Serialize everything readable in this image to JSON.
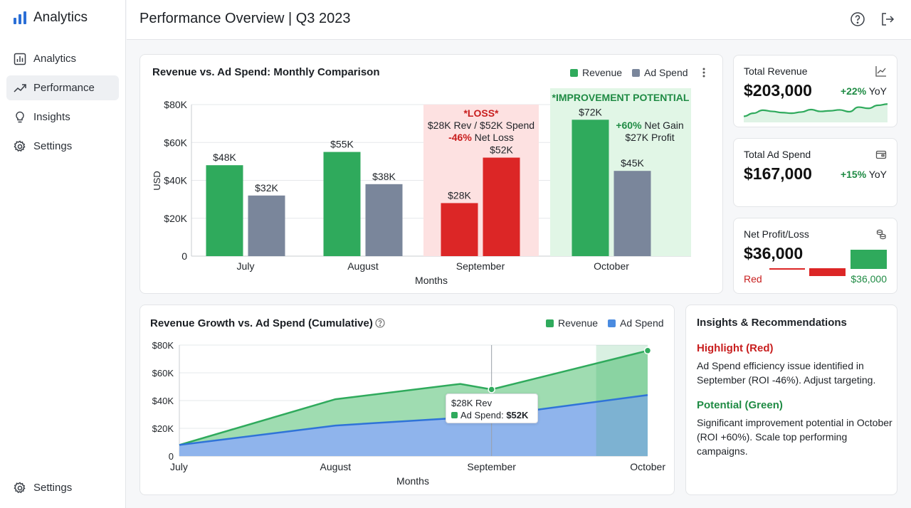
{
  "sidebar": {
    "brand": "Analytics",
    "items": [
      {
        "label": "Analytics"
      },
      {
        "label": "Performance"
      },
      {
        "label": "Insights"
      },
      {
        "label": "Settings"
      }
    ],
    "footer_label": "Settings"
  },
  "header": {
    "title": "Performance Overview | Q3 2023"
  },
  "colors": {
    "revenue": "#2faa5c",
    "ad_spend": "#7a869b",
    "loss": "#dc2626",
    "ad_spend_area": "#4a8be0"
  },
  "bar_card": {
    "title": "Revenue vs. Ad Spend: Monthly Comparison",
    "legend": [
      "Revenue",
      "Ad Spend"
    ],
    "menu_icon": "more-vertical-icon",
    "annotations": {
      "loss_title": "*LOSS*",
      "loss_line1": "$28K Rev / $52K Spend",
      "loss_line2_value": "-46%",
      "loss_line2_text": " Net Loss",
      "gain_title": "*IMPROVEMENT POTENTIAL",
      "gain_line1_value": "+60%",
      "gain_line1_text": " Net Gain",
      "gain_line2": "$27K Profit"
    }
  },
  "kpis": [
    {
      "label": "Total Revenue",
      "value": "$203,000",
      "change": "+22%",
      "change_suffix": " YoY",
      "icon": "line-chart-icon"
    },
    {
      "label": "Total Ad Spend",
      "value": "$167,000",
      "change": "+15%",
      "change_suffix": " YoY",
      "icon": "wallet-icon"
    },
    {
      "label": "Net Profit/Loss",
      "value": "$36,000",
      "neg_label": "Red",
      "pos_label": "$36,000",
      "icon": "coins-icon"
    }
  ],
  "kpi_sparkline": [
    2,
    3,
    4,
    3.6,
    3.2,
    3,
    3.4,
    4.2,
    3.6,
    3.8,
    4.1,
    3.5,
    5,
    4.6,
    5.6,
    6
  ],
  "area_card": {
    "title": "Revenue Growth vs. Ad Spend (Cumulative)",
    "legend": [
      "Revenue",
      "Ad Spend"
    ],
    "help_icon": "help-circle-icon",
    "tooltip": {
      "line1": "$28K Rev",
      "line2_label": "Ad Spend: ",
      "line2_value": "$52K"
    }
  },
  "insights": {
    "title": "Insights & Recommendations",
    "items": [
      {
        "head": "Highlight (Red)",
        "text": "Ad Spend efficiency issue identified in September (ROI -46%). Adjust targeting."
      },
      {
        "head": "Potential (Green)",
        "text": "Significant improvement potential in October (ROI +60%). Scale top performing campaigns."
      }
    ]
  },
  "chart_data": [
    {
      "type": "bar",
      "title": "Revenue vs. Ad Spend: Monthly Comparison",
      "xlabel": "Months",
      "ylabel": "USD",
      "categories": [
        "July",
        "August",
        "September",
        "October"
      ],
      "series": [
        {
          "name": "Revenue",
          "values": [
            48,
            55,
            28,
            72
          ],
          "labels": [
            "$48K",
            "$55K",
            "$28K",
            "$72K"
          ]
        },
        {
          "name": "Ad Spend",
          "values": [
            32,
            38,
            52,
            45
          ],
          "labels": [
            "$32K",
            "$38K",
            "$52K",
            "$45K"
          ]
        }
      ],
      "ylim": [
        0,
        80
      ],
      "yticks": [
        0,
        20,
        40,
        60,
        80
      ],
      "ytick_labels": [
        "0",
        "$20K",
        "$40K",
        "$60K",
        "$80K"
      ],
      "grid": true,
      "legend": "top-right"
    },
    {
      "type": "area",
      "title": "Revenue Growth vs. Ad Spend (Cumulative)",
      "xlabel": "Months",
      "x_labels": [
        "July",
        "August",
        "September",
        "October"
      ],
      "series": [
        {
          "name": "Revenue",
          "points": [
            [
              0,
              8
            ],
            [
              1,
              41
            ],
            [
              1.8,
              52
            ],
            [
              2,
              48
            ],
            [
              3,
              76
            ]
          ]
        },
        {
          "name": "Ad Spend",
          "points": [
            [
              0,
              8
            ],
            [
              1,
              22
            ],
            [
              2,
              29
            ],
            [
              3,
              44
            ]
          ]
        }
      ],
      "ylim": [
        0,
        80
      ],
      "yticks": [
        0,
        20,
        40,
        60,
        80
      ],
      "ytick_labels": [
        "0",
        "$20K",
        "$40K",
        "$60K",
        "$80K"
      ],
      "grid": true,
      "legend": "top-right"
    }
  ]
}
